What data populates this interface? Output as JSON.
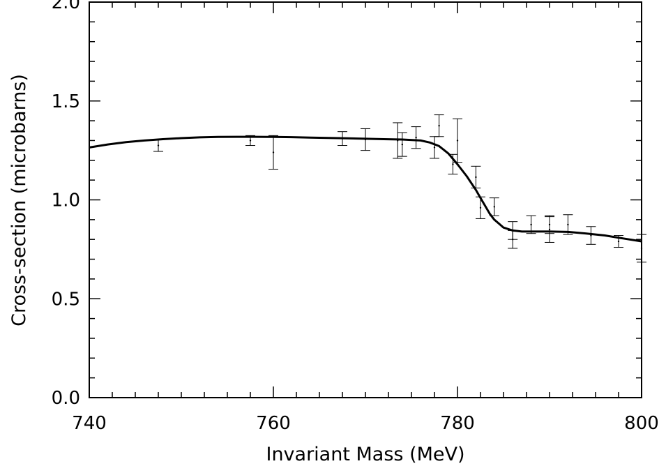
{
  "chart_data": {
    "type": "scatter",
    "xlabel": "Invariant Mass (MeV)",
    "ylabel": "Cross-section (microbarns)",
    "xlim": [
      740,
      800
    ],
    "ylim": [
      0.0,
      2.0
    ],
    "x_ticks": [
      "740",
      "760",
      "780",
      "800"
    ],
    "y_ticks": [
      "0.0",
      "0.5",
      "1.0",
      "1.5",
      "2.0"
    ],
    "x_minor_step": 2.5,
    "y_minor_step": 0.1,
    "grid": false,
    "legend": "none",
    "series": [
      {
        "kind": "points-with-error-bars",
        "points": [
          {
            "x": 747.5,
            "y": 1.275,
            "err": 0.03
          },
          {
            "x": 757.5,
            "y": 1.3,
            "err": 0.025
          },
          {
            "x": 760.0,
            "y": 1.24,
            "err": 0.085
          },
          {
            "x": 767.5,
            "y": 1.31,
            "err": 0.035
          },
          {
            "x": 770.0,
            "y": 1.305,
            "err": 0.055
          },
          {
            "x": 773.5,
            "y": 1.3,
            "err": 0.09
          },
          {
            "x": 774.0,
            "y": 1.28,
            "err": 0.06
          },
          {
            "x": 775.5,
            "y": 1.315,
            "err": 0.055
          },
          {
            "x": 777.5,
            "y": 1.265,
            "err": 0.055
          },
          {
            "x": 778.0,
            "y": 1.375,
            "err": 0.055
          },
          {
            "x": 779.5,
            "y": 1.18,
            "err": 0.05
          },
          {
            "x": 780.0,
            "y": 1.3,
            "err": 0.11
          },
          {
            "x": 782.0,
            "y": 1.115,
            "err": 0.055
          },
          {
            "x": 782.5,
            "y": 0.96,
            "err": 0.055
          },
          {
            "x": 784.0,
            "y": 0.965,
            "err": 0.045
          },
          {
            "x": 786.0,
            "y": 0.845,
            "err": 0.045
          },
          {
            "x": 786.0,
            "y": 0.8,
            "err": 0.045
          },
          {
            "x": 788.0,
            "y": 0.875,
            "err": 0.045
          },
          {
            "x": 790.0,
            "y": 0.85,
            "err": 0.065
          },
          {
            "x": 790.0,
            "y": 0.875,
            "err": 0.045
          },
          {
            "x": 792.0,
            "y": 0.875,
            "err": 0.05
          },
          {
            "x": 794.5,
            "y": 0.82,
            "err": 0.045
          },
          {
            "x": 797.5,
            "y": 0.79,
            "err": 0.03
          },
          {
            "x": 800.0,
            "y": 0.755,
            "err": 0.07
          }
        ]
      },
      {
        "kind": "fit-curve",
        "x": [
          740,
          742,
          744,
          746,
          748,
          750,
          752,
          754,
          756,
          758,
          760,
          762,
          764,
          766,
          768,
          770,
          772,
          774,
          776,
          777,
          778,
          779,
          780,
          781,
          782,
          782.5,
          783,
          783.5,
          784,
          784.5,
          785,
          786,
          787,
          788,
          790,
          792,
          794,
          796,
          798,
          800
        ],
        "y": [
          1.265,
          1.28,
          1.292,
          1.3,
          1.307,
          1.312,
          1.316,
          1.318,
          1.319,
          1.319,
          1.318,
          1.317,
          1.315,
          1.313,
          1.311,
          1.309,
          1.307,
          1.305,
          1.3,
          1.29,
          1.272,
          1.235,
          1.18,
          1.12,
          1.05,
          1.01,
          0.97,
          0.93,
          0.9,
          0.88,
          0.86,
          0.845,
          0.84,
          0.84,
          0.84,
          0.838,
          0.83,
          0.82,
          0.805,
          0.79
        ]
      }
    ]
  }
}
